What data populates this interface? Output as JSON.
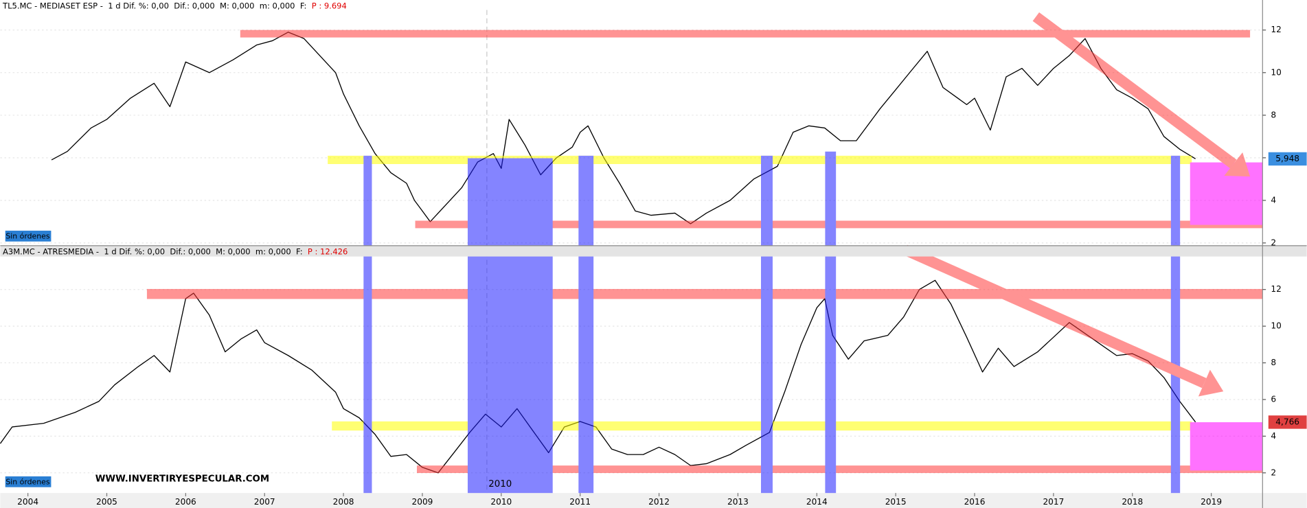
{
  "chart_data": [
    {
      "type": "line",
      "title": "TL5.MC - MEDIASET ESP -  1 d Dif. %: 0,00  Dif.: 0,000  M: 0,000  m: 0,000  F:",
      "price_label": "P : 9.694",
      "color": "#000000",
      "grid": true,
      "orders_button": "Sin órdenes",
      "xlim": [
        2003.65,
        2019.65
      ],
      "ylim": [
        1.95,
        13.02
      ],
      "yticks": [
        2,
        4,
        6,
        8,
        10,
        12
      ],
      "last_price": {
        "value": 5.948,
        "label": "5,948"
      },
      "x": [
        2004.3,
        2004.5,
        2004.8,
        2005.0,
        2005.3,
        2005.6,
        2005.8,
        2006.0,
        2006.3,
        2006.6,
        2006.9,
        2007.1,
        2007.3,
        2007.5,
        2007.7,
        2007.9,
        2008.0,
        2008.2,
        2008.4,
        2008.6,
        2008.8,
        2008.9,
        2009.0,
        2009.1,
        2009.3,
        2009.5,
        2009.7,
        2009.9,
        2010.0,
        2010.1,
        2010.3,
        2010.5,
        2010.7,
        2010.9,
        2011.0,
        2011.1,
        2011.3,
        2011.5,
        2011.7,
        2011.9,
        2012.2,
        2012.4,
        2012.6,
        2012.9,
        2013.2,
        2013.5,
        2013.7,
        2013.9,
        2014.1,
        2014.3,
        2014.5,
        2014.8,
        2015.0,
        2015.2,
        2015.4,
        2015.6,
        2015.9,
        2016.0,
        2016.2,
        2016.4,
        2016.6,
        2016.8,
        2017.0,
        2017.2,
        2017.4,
        2017.6,
        2017.8,
        2018.0,
        2018.2,
        2018.4,
        2018.6,
        2018.8
      ],
      "values": [
        5.9,
        6.3,
        7.4,
        7.8,
        8.8,
        9.5,
        8.4,
        10.5,
        10.0,
        10.6,
        11.3,
        11.5,
        11.9,
        11.6,
        10.8,
        10.0,
        9.0,
        7.5,
        6.2,
        5.3,
        4.8,
        4.0,
        3.5,
        3.0,
        3.8,
        4.6,
        5.8,
        6.2,
        5.5,
        7.8,
        6.6,
        5.2,
        6.0,
        6.5,
        7.2,
        7.5,
        6.0,
        4.8,
        3.5,
        3.3,
        3.4,
        2.9,
        3.4,
        4.0,
        5.0,
        5.6,
        7.2,
        7.5,
        7.4,
        6.8,
        6.8,
        8.3,
        9.2,
        10.1,
        11.0,
        9.3,
        8.5,
        8.8,
        7.3,
        9.8,
        10.2,
        9.4,
        10.2,
        10.8,
        11.6,
        10.2,
        9.2,
        8.8,
        8.3,
        7.0,
        6.4,
        5.95
      ]
    },
    {
      "type": "line",
      "title": "A3M.MC - ATRESMEDIA -  1 d Dif. %: 0,00  Dif.: 0,000  M: 0,000  m: 0,000  F:",
      "price_label": "P : 12.426",
      "color": "#000000",
      "grid": true,
      "orders_button": "Sin órdenes",
      "xlim": [
        2003.65,
        2019.65
      ],
      "xticks": [
        2004,
        2005,
        2006,
        2007,
        2008,
        2009,
        2010,
        2011,
        2012,
        2013,
        2014,
        2015,
        2016,
        2017,
        2018,
        2019
      ],
      "ylim": [
        0.9,
        13.8
      ],
      "yticks": [
        2,
        4,
        6,
        8,
        10,
        12
      ],
      "last_price": {
        "value": 4.766,
        "label": "4,766"
      },
      "x": [
        2003.65,
        2003.8,
        2004.2,
        2004.6,
        2004.9,
        2005.1,
        2005.4,
        2005.6,
        2005.8,
        2005.9,
        2006.0,
        2006.1,
        2006.3,
        2006.5,
        2006.7,
        2006.9,
        2007.0,
        2007.3,
        2007.6,
        2007.9,
        2008.0,
        2008.2,
        2008.4,
        2008.6,
        2008.8,
        2009.0,
        2009.2,
        2009.4,
        2009.6,
        2009.8,
        2010.0,
        2010.2,
        2010.4,
        2010.6,
        2010.8,
        2011.0,
        2011.2,
        2011.4,
        2011.6,
        2011.8,
        2012.0,
        2012.2,
        2012.4,
        2012.6,
        2012.9,
        2013.1,
        2013.4,
        2013.6,
        2013.8,
        2014.0,
        2014.1,
        2014.2,
        2014.4,
        2014.6,
        2014.9,
        2015.1,
        2015.3,
        2015.5,
        2015.7,
        2015.9,
        2016.1,
        2016.3,
        2016.5,
        2016.8,
        2017.0,
        2017.2,
        2017.5,
        2017.8,
        2018.0,
        2018.2,
        2018.4,
        2018.6,
        2018.8
      ],
      "values": [
        3.6,
        4.5,
        4.7,
        5.3,
        5.9,
        6.8,
        7.8,
        8.4,
        7.5,
        9.5,
        11.5,
        11.8,
        10.6,
        8.6,
        9.3,
        9.8,
        9.1,
        8.4,
        7.6,
        6.4,
        5.5,
        5.0,
        4.1,
        2.9,
        3.0,
        2.3,
        2.0,
        3.1,
        4.2,
        5.2,
        4.5,
        5.5,
        4.3,
        3.1,
        4.5,
        4.8,
        4.5,
        3.3,
        3.0,
        3.0,
        3.4,
        3.0,
        2.4,
        2.5,
        3.0,
        3.5,
        4.2,
        6.5,
        9.0,
        11.0,
        11.5,
        9.5,
        8.2,
        9.2,
        9.5,
        10.5,
        12.0,
        12.5,
        11.2,
        9.4,
        7.5,
        8.8,
        7.8,
        8.6,
        9.4,
        10.2,
        9.3,
        8.4,
        8.5,
        8.1,
        7.2,
        5.9,
        4.77
      ]
    }
  ],
  "watermark": "WWW.INVERTIRYESPECULAR.COM",
  "marker_label": "2010"
}
